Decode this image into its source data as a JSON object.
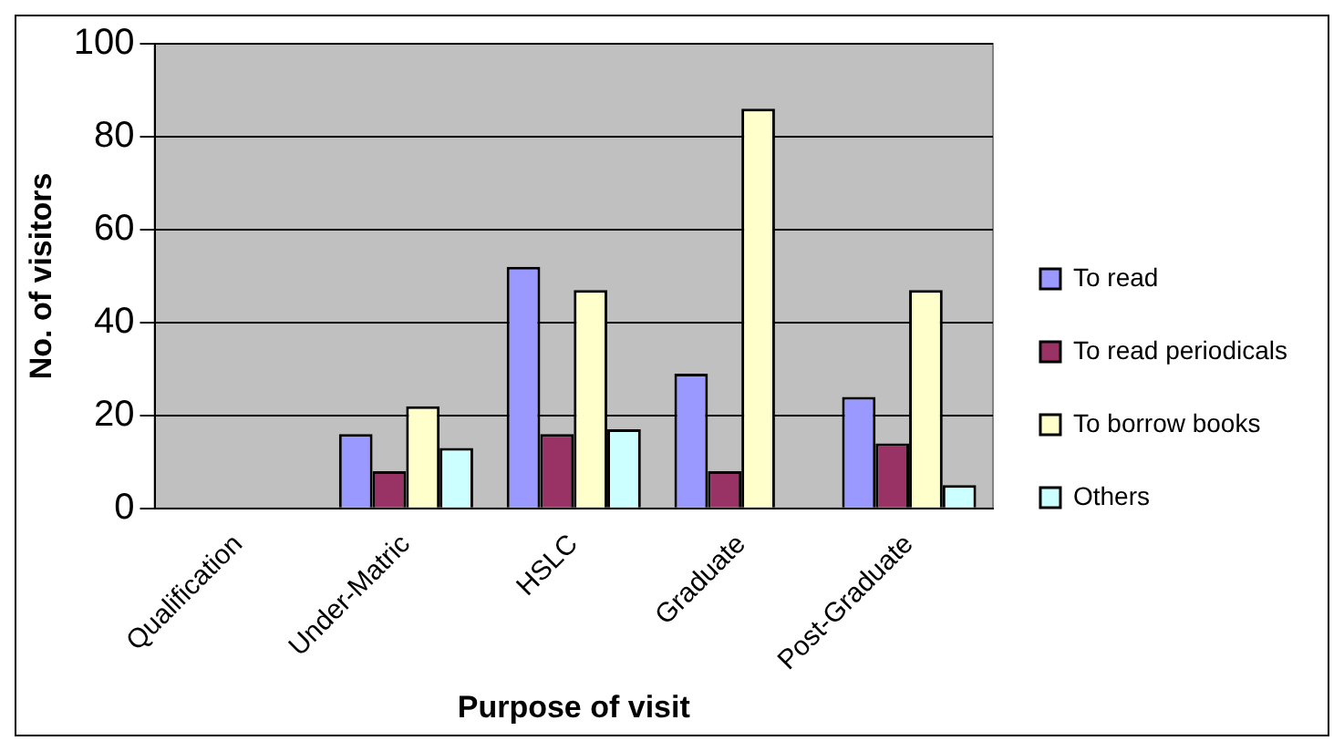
{
  "chart_data": {
    "type": "bar",
    "xlabel": "Purpose of visit",
    "ylabel": "No. of visitors",
    "categories": [
      "Qualification",
      "Under-Matric",
      "HSLC",
      "Graduate",
      "Post-Graduate"
    ],
    "series": [
      {
        "name": "To read",
        "color": "#9999ff",
        "values": [
          null,
          16,
          52,
          29,
          24
        ]
      },
      {
        "name": "To read periodicals",
        "color": "#993366",
        "values": [
          null,
          8,
          16,
          8,
          14
        ]
      },
      {
        "name": "To borrow books",
        "color": "#ffffcc",
        "values": [
          null,
          22,
          47,
          86,
          47
        ]
      },
      {
        "name": "Others",
        "color": "#ccffff",
        "values": [
          null,
          13,
          17,
          null,
          5
        ]
      }
    ],
    "ylim": [
      0,
      100
    ],
    "yticks": [
      0,
      20,
      40,
      60,
      80,
      100
    ],
    "grid": "y",
    "legend": "right"
  }
}
